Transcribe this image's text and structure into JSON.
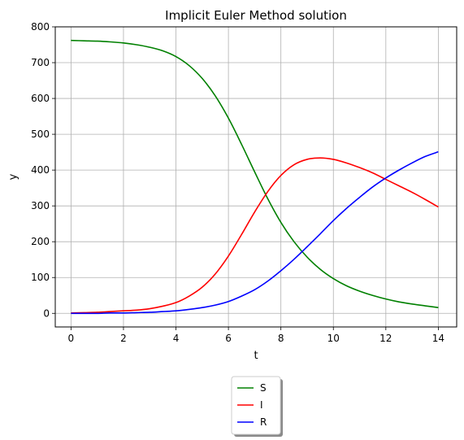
{
  "chart_data": {
    "type": "line",
    "title": "Implicit Euler Method solution",
    "xlabel": "t",
    "ylabel": "y",
    "xlim": [
      -0.6,
      14.7
    ],
    "ylim": [
      -38,
      800
    ],
    "xticks": [
      0,
      2,
      4,
      6,
      8,
      10,
      12,
      14
    ],
    "yticks": [
      0,
      100,
      200,
      300,
      400,
      500,
      600,
      700,
      800
    ],
    "grid": true,
    "legend": "below-center",
    "x": [
      0,
      0.5,
      1,
      1.5,
      2,
      2.5,
      3,
      3.5,
      4,
      4.5,
      5,
      5.5,
      6,
      6.5,
      7,
      7.5,
      8,
      8.5,
      9,
      9.5,
      10,
      10.5,
      11,
      11.5,
      12,
      12.5,
      13,
      13.5,
      14
    ],
    "series": [
      {
        "name": "S",
        "color": "#008000",
        "values": [
          762,
          761,
          760,
          758,
          755,
          750,
          743,
          733,
          717,
          692,
          656,
          607,
          545,
          472,
          395,
          320,
          254,
          200,
          157,
          123,
          97,
          77,
          62,
          50,
          40,
          32,
          26,
          21,
          16
        ]
      },
      {
        "name": "I",
        "color": "#ff0000",
        "values": [
          1,
          2,
          3,
          5,
          7,
          9,
          13,
          20,
          30,
          48,
          73,
          110,
          160,
          220,
          283,
          340,
          385,
          415,
          430,
          434,
          430,
          420,
          407,
          392,
          374,
          356,
          338,
          318,
          297
        ]
      },
      {
        "name": "R",
        "color": "#0000ff",
        "values": [
          0,
          0,
          0,
          1,
          1,
          2,
          3,
          5,
          7,
          11,
          16,
          23,
          33,
          48,
          66,
          90,
          119,
          151,
          186,
          222,
          259,
          293,
          324,
          353,
          378,
          400,
          420,
          438,
          451
        ]
      }
    ]
  }
}
